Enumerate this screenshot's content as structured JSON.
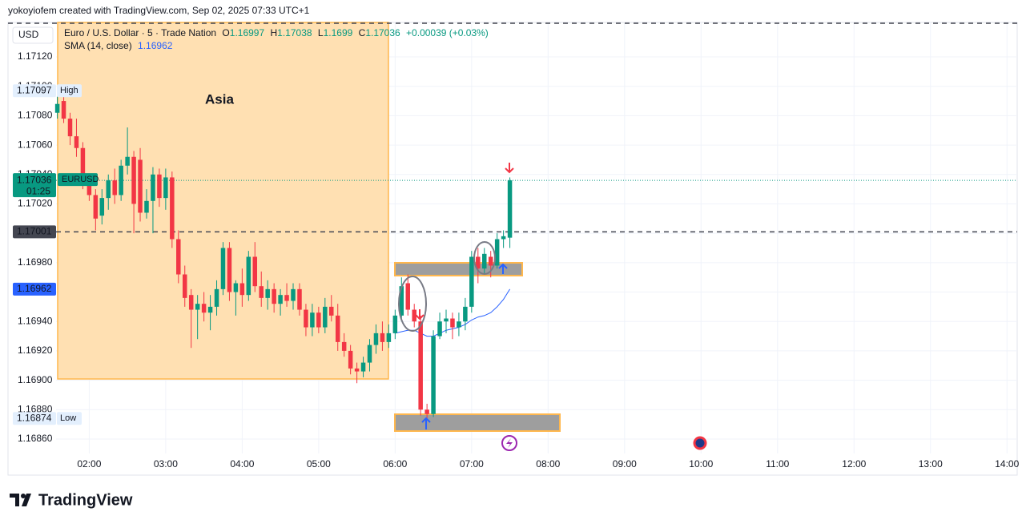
{
  "attribution": "yokoyiofem created with TradingView.com, Sep 02, 2025 07:33 UTC+1",
  "brand": "TradingView",
  "chart_data": {
    "type": "candlestick",
    "currency": "USD",
    "title": "Euro / U.S. Dollar · 5 · Trade Nation",
    "ohlc_labels": [
      "O",
      "H",
      "L",
      "C"
    ],
    "change": "+0.00039 (+0.03%)",
    "indicator": "SMA (14, close)",
    "annotation": "Asia",
    "symbol": "EURUSD",
    "timer": "01:25",
    "high_label": "High",
    "low_label": "Low",
    "level": 1.17001,
    "up_color": "#089981",
    "down_color": "#f23645",
    "sma_color": "#2962ff",
    "x": [
      "01:35",
      "01:40",
      "01:45",
      "01:50",
      "01:55",
      "02:00",
      "02:05",
      "02:10",
      "02:15",
      "02:20",
      "02:25",
      "02:30",
      "02:35",
      "02:40",
      "02:45",
      "02:50",
      "02:55",
      "03:00",
      "03:05",
      "03:10",
      "03:15",
      "03:20",
      "03:25",
      "03:30",
      "03:35",
      "03:40",
      "03:45",
      "03:50",
      "03:55",
      "04:00",
      "04:05",
      "04:10",
      "04:15",
      "04:20",
      "04:25",
      "04:30",
      "04:35",
      "04:40",
      "04:45",
      "04:50",
      "04:55",
      "05:00",
      "05:05",
      "05:10",
      "05:15",
      "05:20",
      "05:25",
      "05:30",
      "05:35",
      "05:40",
      "05:45",
      "05:50",
      "05:55",
      "06:00",
      "06:05",
      "06:10",
      "06:15",
      "06:20",
      "06:25",
      "06:30",
      "06:35",
      "06:40",
      "06:45",
      "06:50",
      "06:55",
      "07:00",
      "07:05",
      "07:10",
      "07:15",
      "07:20",
      "07:25",
      "07:30"
    ],
    "series": [
      {
        "name": "EURUSD",
        "open": [
          1.17082,
          1.1709,
          1.17078,
          1.17066,
          1.17058,
          1.17034,
          1.17026,
          1.17012,
          1.17024,
          1.17036,
          1.17026,
          1.17046,
          1.17052,
          1.1705,
          1.17014,
          1.17022,
          1.1704,
          1.17024,
          1.17038,
          1.16996,
          1.16972,
          1.16958,
          1.16948,
          1.16952,
          1.16946,
          1.1695,
          1.16962,
          1.1699,
          1.1696,
          1.16966,
          1.16958,
          1.16984,
          1.16964,
          1.16956,
          1.16962,
          1.16952,
          1.16958,
          1.16954,
          1.16962,
          1.16948,
          1.16936,
          1.16946,
          1.16936,
          1.1695,
          1.16944,
          1.16926,
          1.1692,
          1.16908,
          1.16906,
          1.16912,
          1.16924,
          1.16932,
          1.16926,
          1.16932,
          1.16944,
          1.16966,
          1.16948,
          1.1694,
          1.1688,
          1.16877,
          1.1693,
          1.1694,
          1.16942,
          1.16936,
          1.1694,
          1.1695,
          1.16984,
          1.16976,
          1.16984,
          1.16978,
          1.16996,
          1.16997
        ],
        "high": [
          1.17093,
          1.17097,
          1.17082,
          1.17078,
          1.17062,
          1.1704,
          1.1703,
          1.1703,
          1.1704,
          1.17044,
          1.1705,
          1.17072,
          1.17056,
          1.17058,
          1.1703,
          1.17045,
          1.17044,
          1.17044,
          1.17042,
          1.17002,
          1.16978,
          1.16962,
          1.16958,
          1.1696,
          1.16958,
          1.16968,
          1.16994,
          1.16994,
          1.16968,
          1.16976,
          1.16988,
          1.16994,
          1.16974,
          1.16968,
          1.16966,
          1.16962,
          1.16966,
          1.16966,
          1.16966,
          1.16952,
          1.16952,
          1.1695,
          1.16956,
          1.16958,
          1.16952,
          1.16932,
          1.16924,
          1.16912,
          1.16916,
          1.16928,
          1.16938,
          1.1694,
          1.16938,
          1.16948,
          1.1697,
          1.16972,
          1.16952,
          1.16944,
          1.16884,
          1.16934,
          1.16946,
          1.16948,
          1.16946,
          1.16946,
          1.16956,
          1.16988,
          1.1699,
          1.1699,
          1.16988,
          1.17,
          1.17002,
          1.17038
        ],
        "low": [
          1.17078,
          1.17075,
          1.1706,
          1.17052,
          1.1703,
          1.17022,
          1.17002,
          1.17006,
          1.17016,
          1.1702,
          1.17022,
          1.1704,
          1.17,
          1.17008,
          1.1701,
          1.17,
          1.17018,
          1.17016,
          1.1699,
          1.16966,
          1.1695,
          1.16922,
          1.16928,
          1.1694,
          1.16934,
          1.16944,
          1.16958,
          1.16954,
          1.16944,
          1.1695,
          1.16954,
          1.1696,
          1.1695,
          1.16948,
          1.16946,
          1.16944,
          1.1695,
          1.16948,
          1.16944,
          1.1693,
          1.1693,
          1.16932,
          1.16932,
          1.1694,
          1.1692,
          1.16916,
          1.16904,
          1.16898,
          1.16902,
          1.16906,
          1.16918,
          1.1692,
          1.16922,
          1.16928,
          1.1694,
          1.16944,
          1.16936,
          1.16876,
          1.16874,
          1.16875,
          1.16928,
          1.16932,
          1.16928,
          1.1693,
          1.16934,
          1.16946,
          1.16966,
          1.16972,
          1.1697,
          1.16976,
          1.1699,
          1.1699
        ],
        "close": [
          1.17088,
          1.17078,
          1.17066,
          1.17058,
          1.17034,
          1.17026,
          1.1701,
          1.17024,
          1.17036,
          1.17026,
          1.17046,
          1.17052,
          1.1702,
          1.17014,
          1.17022,
          1.1704,
          1.17024,
          1.17038,
          1.16996,
          1.16972,
          1.16956,
          1.16948,
          1.16952,
          1.16946,
          1.1695,
          1.16962,
          1.1699,
          1.1696,
          1.16966,
          1.16958,
          1.16984,
          1.16964,
          1.16956,
          1.16962,
          1.16952,
          1.16958,
          1.16954,
          1.16962,
          1.16948,
          1.16936,
          1.16946,
          1.16936,
          1.1695,
          1.16944,
          1.16926,
          1.1692,
          1.16908,
          1.16906,
          1.16912,
          1.16924,
          1.16932,
          1.16926,
          1.16932,
          1.16944,
          1.16964,
          1.16948,
          1.1694,
          1.1688,
          1.16877,
          1.1693,
          1.1694,
          1.16942,
          1.16936,
          1.1694,
          1.1695,
          1.16984,
          1.16976,
          1.16986,
          1.16978,
          1.16996,
          1.16998,
          1.17036
        ],
        "sma": [
          null,
          null,
          null,
          null,
          null,
          null,
          null,
          null,
          null,
          null,
          null,
          null,
          null,
          null,
          null,
          null,
          null,
          null,
          null,
          null,
          null,
          null,
          null,
          null,
          null,
          null,
          null,
          null,
          null,
          null,
          null,
          null,
          null,
          null,
          null,
          null,
          null,
          null,
          null,
          null,
          null,
          null,
          null,
          null,
          null,
          null,
          null,
          null,
          null,
          null,
          null,
          null,
          null,
          1.16932,
          1.16933,
          1.16934,
          1.16934,
          1.16932,
          1.1693,
          1.1693,
          1.16932,
          1.16934,
          1.16935,
          1.16936,
          1.16938,
          1.16941,
          1.16943,
          1.16944,
          1.16946,
          1.1695,
          1.16955,
          1.16962
        ]
      }
    ],
    "ylim": [
      1.1685,
      1.17144
    ],
    "yticks": [
      {
        "value": 1.1712,
        "label": "1.17120"
      },
      {
        "value": 1.171,
        "label": "1.17100"
      },
      {
        "value": 1.1708,
        "label": "1.17080"
      },
      {
        "value": 1.1706,
        "label": "1.17060"
      },
      {
        "value": 1.1704,
        "label": "1.17040"
      },
      {
        "value": 1.1702,
        "label": "1.17020"
      },
      {
        "value": 1.17,
        "label": "1.17000"
      },
      {
        "value": 1.1698,
        "label": "1.16980"
      },
      {
        "value": 1.1696,
        "label": "1.16960"
      },
      {
        "value": 1.1694,
        "label": "1.16940"
      },
      {
        "value": 1.1692,
        "label": "1.16920"
      },
      {
        "value": 1.169,
        "label": "1.16900"
      },
      {
        "value": 1.1688,
        "label": "1.16880"
      },
      {
        "value": 1.1686,
        "label": "1.16860"
      }
    ],
    "xlim": [
      "01:34",
      "14:08"
    ],
    "xticks": [
      "02:00",
      "03:00",
      "04:00",
      "05:00",
      "06:00",
      "07:00",
      "08:00",
      "09:00",
      "10:00",
      "11:00",
      "12:00",
      "13:00",
      "14:00"
    ],
    "grid": true
  }
}
